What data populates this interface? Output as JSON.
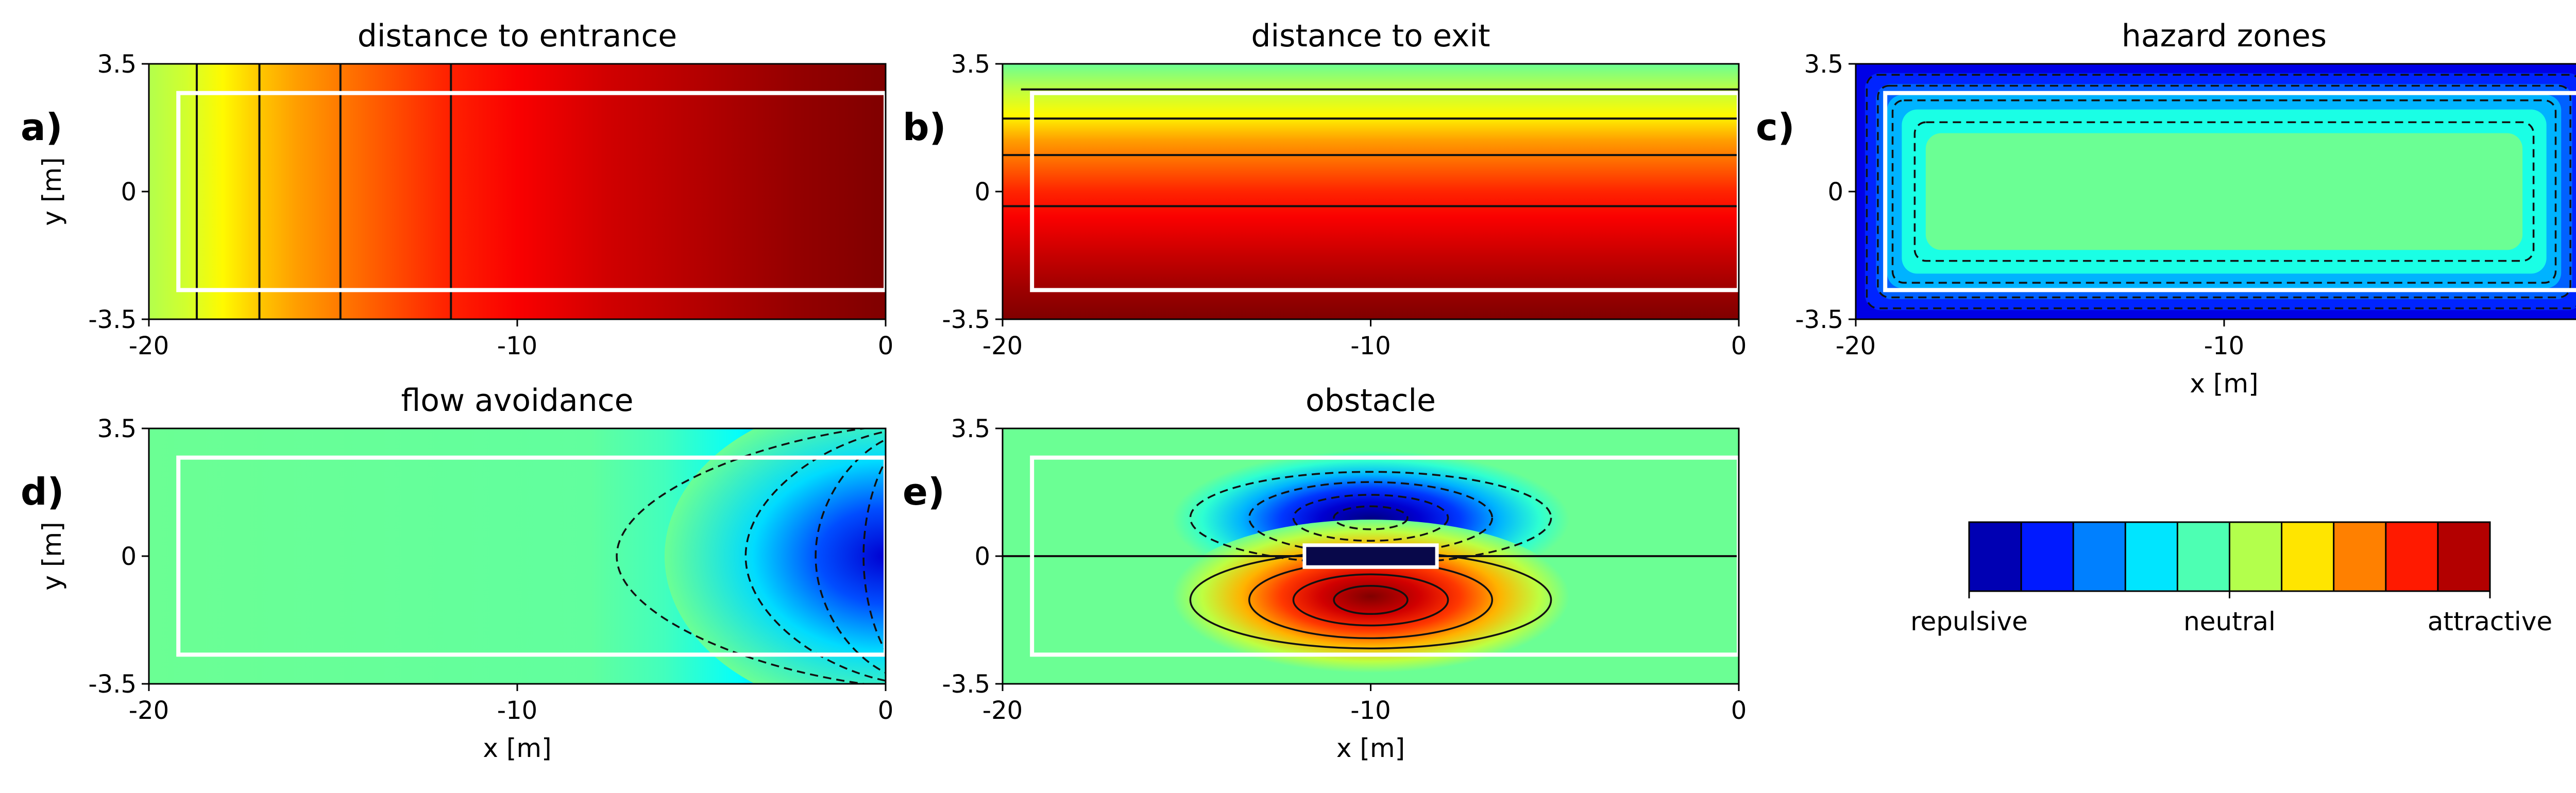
{
  "chart_data": [
    {
      "id": "a",
      "type": "heatmap",
      "panel_label": "a)",
      "title": "distance to entrance",
      "xlabel": "",
      "ylabel": "y [m]",
      "xlim": [
        -20,
        0
      ],
      "ylim": [
        -3.5,
        3.5
      ],
      "xticks": [
        "-20",
        "-10",
        "0"
      ],
      "yticks": [
        "-3.5",
        "0",
        "3.5"
      ],
      "field": "entrance",
      "contours": {
        "x": [
          -18.7,
          -17.0,
          -14.8,
          -11.8
        ]
      },
      "boundary": {
        "xmin": -19.2,
        "xmax": 0,
        "ymin": -2.7,
        "ymax": 2.7
      }
    },
    {
      "id": "b",
      "type": "heatmap",
      "panel_label": "b)",
      "title": "distance to exit",
      "xlabel": "",
      "ylabel": "",
      "xlim": [
        -20,
        0
      ],
      "ylim": [
        -3.5,
        3.5
      ],
      "xticks": [
        "-20",
        "-10",
        "0"
      ],
      "yticks": [
        "-3.5",
        "0",
        "3.5"
      ],
      "field": "exit",
      "contours": {
        "y": [
          2.8,
          2.0,
          1.0,
          -0.4
        ]
      },
      "boundary": {
        "xmin": -19.2,
        "xmax": 0,
        "ymin": -2.7,
        "ymax": 2.7
      }
    },
    {
      "id": "c",
      "type": "heatmap",
      "panel_label": "c)",
      "title": "hazard zones",
      "xlabel": "x [m]",
      "ylabel": "",
      "xlim": [
        -20,
        0
      ],
      "ylim": [
        -3.5,
        3.5
      ],
      "xticks": [
        "-20",
        "-10",
        "0"
      ],
      "yticks": [
        "-3.5",
        "0",
        "3.5"
      ],
      "field": "hazard",
      "contours": {
        "inset": [
          0.3,
          0.6,
          1.0,
          1.6
        ]
      },
      "boundary": {
        "xmin": -19.2,
        "xmax": 0,
        "ymin": -2.7,
        "ymax": 2.7
      }
    },
    {
      "id": "d",
      "type": "heatmap",
      "panel_label": "d)",
      "title": "flow avoidance",
      "xlabel": "x [m]",
      "ylabel": "y [m]",
      "xlim": [
        -20,
        0
      ],
      "ylim": [
        -3.5,
        3.5
      ],
      "xticks": [
        "-20",
        "-10",
        "0"
      ],
      "yticks": [
        "-3.5",
        "0",
        "3.5"
      ],
      "field": "flow",
      "contours": {
        "apex_x": [
          -7.3,
          -3.8,
          -1.9,
          -0.6
        ]
      },
      "boundary": {
        "xmin": -19.2,
        "xmax": 0,
        "ymin": -2.7,
        "ymax": 2.7
      }
    },
    {
      "id": "e",
      "type": "heatmap",
      "panel_label": "e)",
      "title": "obstacle",
      "xlabel": "x [m]",
      "ylabel": "",
      "xlim": [
        -20,
        0
      ],
      "ylim": [
        -3.5,
        3.5
      ],
      "xticks": [
        "-20",
        "-10",
        "0"
      ],
      "yticks": [
        "-3.5",
        "0",
        "3.5"
      ],
      "field": "obstacle",
      "obstacle": {
        "xmin": -11.8,
        "xmax": -8.2,
        "ymin": -0.3,
        "ymax": 0.3
      },
      "contours": {
        "levels": [
          0.2,
          0.4,
          0.6,
          0.8
        ]
      },
      "boundary": {
        "xmin": -19.2,
        "xmax": 0,
        "ymin": -2.7,
        "ymax": 2.7
      }
    }
  ],
  "colorbar": {
    "colormap": "jet",
    "levels": 10,
    "labels": [
      "repulsive",
      "neutral",
      "attractive"
    ]
  }
}
